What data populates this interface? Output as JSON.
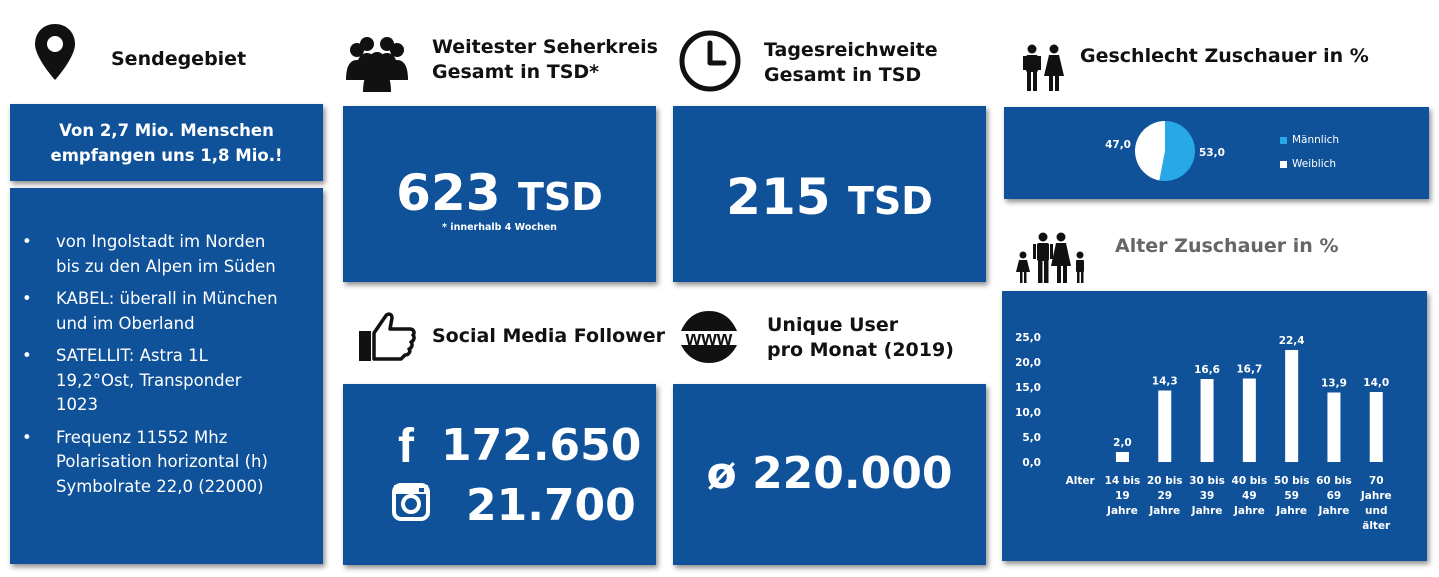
{
  "colors": {
    "panel": "#0f5299",
    "male": "#29a8e8",
    "female": "#ffffff",
    "bar": "#ffffff"
  },
  "sendegebiet": {
    "heading": "Sendegebiet",
    "headline_line1": "Von 2,7 Mio. Menschen",
    "headline_line2": "empfangen uns 1,8 Mio.!",
    "bullets": [
      {
        "line1": "von Ingolstadt im Norden",
        "line2": "bis zu den Alpen im Süden"
      },
      {
        "line1": "KABEL: überall in München",
        "line2": "und im Oberland"
      },
      {
        "line1": "SATELLIT: Astra 1L",
        "line2": "19,2°Ost, Transponder",
        "line3": "1023"
      },
      {
        "line1": "Frequenz 11552 Mhz",
        "line2": "Polarisation horizontal (h)",
        "line3": "Symbolrate 22,0 (22000)"
      }
    ]
  },
  "seherkreis": {
    "heading_line1": "Weitester Seherkreis",
    "heading_line2": "Gesamt in TSD*",
    "value": "623",
    "unit": "TSD",
    "note": "* innerhalb 4 Wochen"
  },
  "tagesreichweite": {
    "heading_line1": "Tagesreichweite",
    "heading_line2": "Gesamt in TSD",
    "value": "215",
    "unit": "TSD"
  },
  "social": {
    "heading": "Social Media Follower",
    "facebook_value": "172.650",
    "instagram_value": "21.700"
  },
  "unique_user": {
    "heading_line1": "Unique User",
    "heading_line2": "pro Monat (2019)",
    "value": "ø 220.000"
  },
  "chart_data": [
    {
      "type": "pie",
      "title": "Geschlecht Zuschauer in %",
      "categories": [
        "Männlich",
        "Weiblich"
      ],
      "values": [
        53.0,
        47.0
      ],
      "labels": [
        "53,0",
        "47,0"
      ],
      "legend": "right"
    },
    {
      "type": "bar",
      "title": "Alter Zuschauer in %",
      "categories": [
        [
          "Alter"
        ],
        [
          "14 bis",
          "19",
          "Jahre"
        ],
        [
          "20 bis",
          "29",
          "Jahre"
        ],
        [
          "30 bis",
          "39",
          "Jahre"
        ],
        [
          "40 bis",
          "49",
          "Jahre"
        ],
        [
          "50 bis",
          "59",
          "Jahre"
        ],
        [
          "60 bis",
          "69",
          "Jahre"
        ],
        [
          "70",
          "Jahre",
          "und",
          "älter"
        ]
      ],
      "values": [
        null,
        2.0,
        14.3,
        16.6,
        16.7,
        22.4,
        13.9,
        14.0
      ],
      "labels": [
        "",
        "2,0",
        "14,3",
        "16,6",
        "16,7",
        "22,4",
        "13,9",
        "14,0"
      ],
      "yticks": [
        "0,0",
        "5,0",
        "10,0",
        "15,0",
        "20,0",
        "25,0"
      ],
      "ylim": [
        0,
        25
      ],
      "xlabel": "",
      "ylabel": ""
    }
  ]
}
